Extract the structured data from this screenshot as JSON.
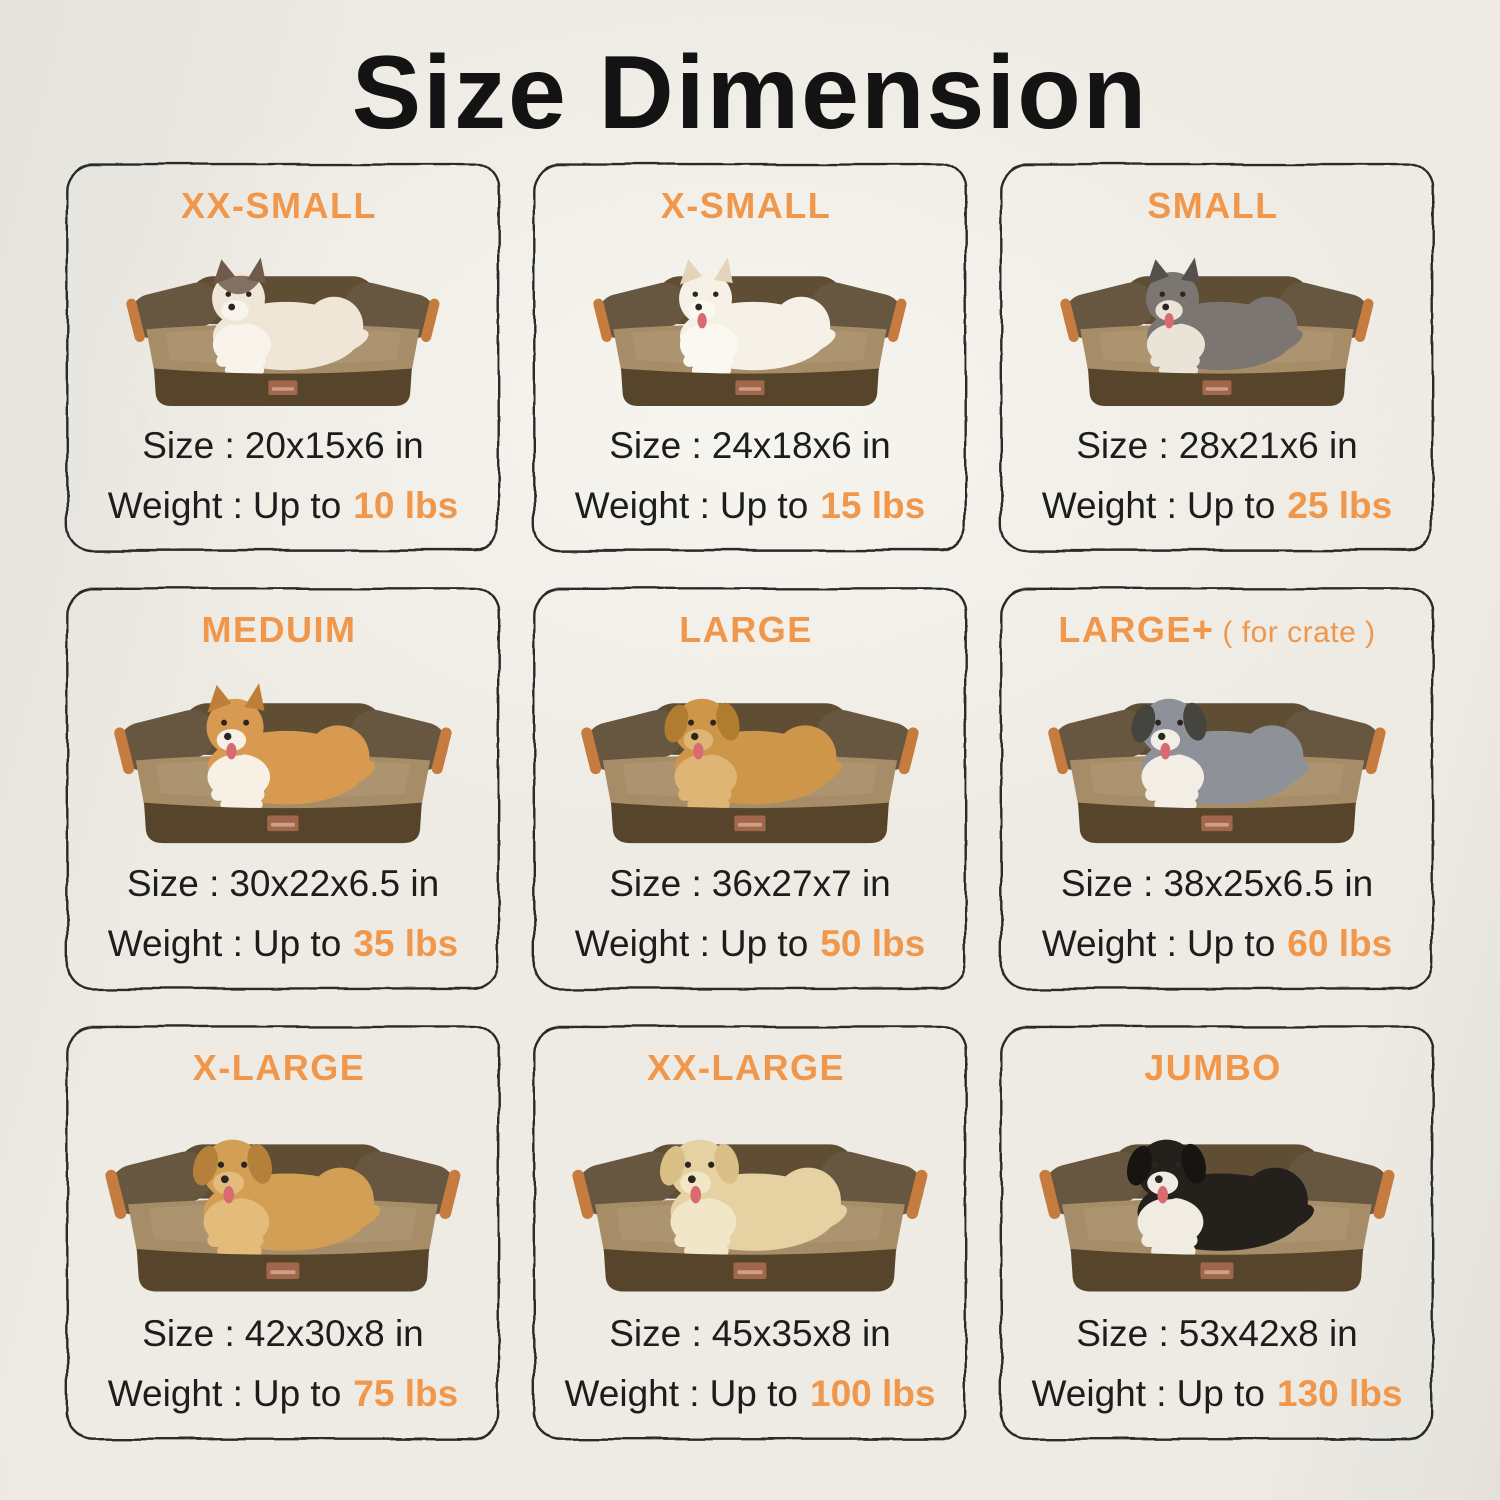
{
  "page": {
    "title": "Size Dimension",
    "colors": {
      "background": "#edebe4",
      "accent_orange": "#f0974b",
      "text_black": "#1d1d1d",
      "card_line": "#2b2b2b",
      "bed_base": "#56452a",
      "bed_bolster": "#5f4e33",
      "bed_arm": "#675741",
      "bed_mattress": "#a68d68",
      "bed_mattress_highlight": "#b49b77",
      "bed_piping": "#c57c3e",
      "bed_tag": "#a2674b",
      "tongue_pink": "#d96a72",
      "pet_face_dark": "#2b2420"
    }
  },
  "cards": [
    {
      "name": "XX-SMALL",
      "note": "",
      "size_label": "Size :",
      "size_value": "20x15x6 in",
      "weight_label": "Weight :",
      "weight_prefix": "Up to",
      "weight_value": "10 lbs",
      "pet": {
        "type": "ragdoll-cat",
        "ears": "pointy",
        "tongue": false,
        "primary": "#efe6d8",
        "secondary": "#f8f4ec",
        "ear": "#6f5a4c",
        "mask": "#6f5a4c"
      }
    },
    {
      "name": "X-SMALL",
      "note": "",
      "size_label": "Size :",
      "size_value": "24x18x6 in",
      "weight_label": "Weight :",
      "weight_prefix": "Up to",
      "weight_value": "15 lbs",
      "pet": {
        "type": "pomeranian",
        "ears": "pointy",
        "tongue": true,
        "primary": "#f6f1e7",
        "secondary": "#fbf8f1",
        "ear": "#e3d4ba"
      }
    },
    {
      "name": "SMALL",
      "note": "",
      "size_label": "Size :",
      "size_value": "28x21x6 in",
      "weight_label": "Weight :",
      "weight_prefix": "Up to",
      "weight_value": "25 lbs",
      "pet": {
        "type": "schnauzer",
        "ears": "pointy",
        "tongue": true,
        "primary": "#7b7672",
        "secondary": "#e9e3d8",
        "ear": "#55504b"
      }
    },
    {
      "name": "MEDUIM",
      "note": "",
      "size_label": "Size :",
      "size_value": "30x22x6.5 in",
      "weight_label": "Weight :",
      "weight_prefix": "Up to",
      "weight_value": "35 lbs",
      "pet": {
        "type": "corgi",
        "ears": "pointy",
        "tongue": true,
        "primary": "#d89a50",
        "secondary": "#f7f1e5",
        "ear": "#c07f39"
      }
    },
    {
      "name": "LARGE",
      "note": "",
      "size_label": "Size :",
      "size_value": "36x27x7 in",
      "weight_label": "Weight :",
      "weight_prefix": "Up to",
      "weight_value": "50 lbs",
      "pet": {
        "type": "golden-retriever",
        "ears": "floppy",
        "tongue": true,
        "primary": "#cd9648",
        "secondary": "#deb574",
        "ear": "#b07c30"
      }
    },
    {
      "name": "LARGE+",
      "note": "( for crate )",
      "size_label": "Size :",
      "size_value": "38x25x6.5 in",
      "weight_label": "Weight :",
      "weight_prefix": "Up to",
      "weight_value": "60 lbs",
      "pet": {
        "type": "australian-shepherd",
        "ears": "floppy",
        "tongue": true,
        "primary": "#8e9298",
        "secondary": "#f2eee6",
        "ear": "#46443f"
      }
    },
    {
      "name": "X-LARGE",
      "note": "",
      "size_label": "Size :",
      "size_value": "42x30x8 in",
      "weight_label": "Weight :",
      "weight_prefix": "Up to",
      "weight_value": "75 lbs",
      "pet": {
        "type": "golden-retriever",
        "ears": "floppy",
        "tongue": true,
        "primary": "#d29f54",
        "secondary": "#e3bc7c",
        "ear": "#b5813a"
      }
    },
    {
      "name": "XX-LARGE",
      "note": "",
      "size_label": "Size :",
      "size_value": "45x35x8 in",
      "weight_label": "Weight :",
      "weight_prefix": "Up to",
      "weight_value": "100 lbs",
      "pet": {
        "type": "yellow-labrador",
        "ears": "floppy",
        "tongue": true,
        "primary": "#e6d1a2",
        "secondary": "#f2e6c8",
        "ear": "#d9bf86"
      }
    },
    {
      "name": "JUMBO",
      "note": "",
      "size_label": "Size :",
      "size_value": "53x42x8 in",
      "weight_label": "Weight :",
      "weight_prefix": "Up to",
      "weight_value": "130 lbs",
      "pet": {
        "type": "bernese-mountain-dog",
        "ears": "floppy",
        "tongue": true,
        "primary": "#24201c",
        "secondary": "#f0ece2",
        "ear": "#171411"
      }
    }
  ]
}
